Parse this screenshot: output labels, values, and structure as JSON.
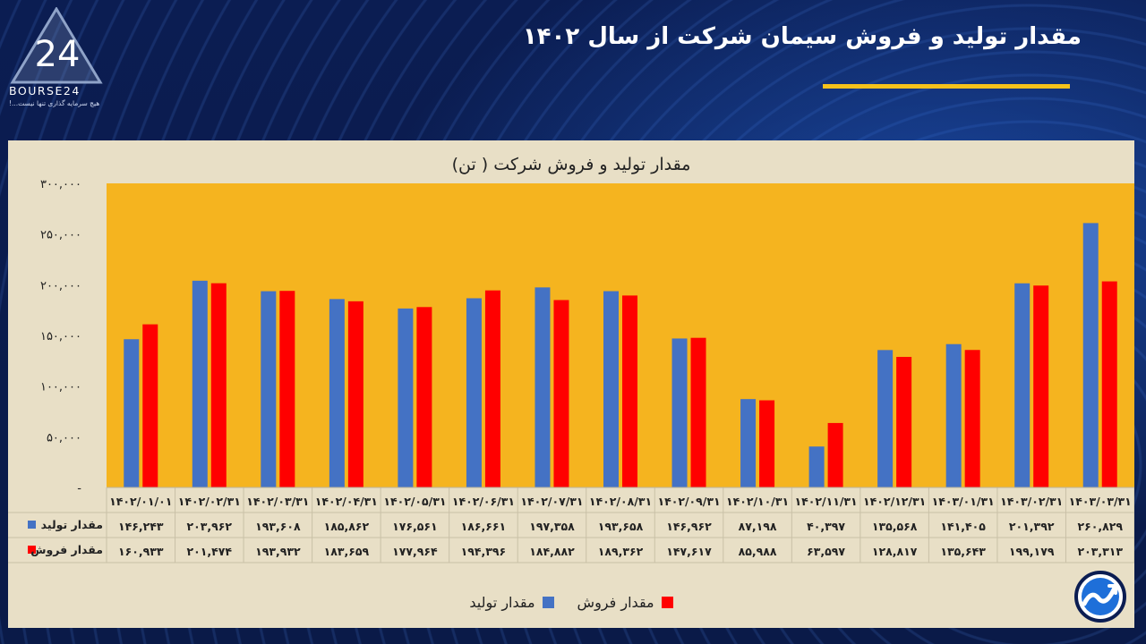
{
  "brand": {
    "name": "BOURSE24",
    "mark": "24",
    "tagline": "هیچ سرمایه گذاری تنها نیست...!"
  },
  "page_title": "مقدار تولید و فروش سیمان شرکت از سال ۱۴۰۲",
  "colors": {
    "accent": "#f5c21b",
    "plot_bg": "#f5b41f",
    "panel_bg": "#e8dfc6",
    "production": "#4472c4",
    "sales": "#ff0000"
  },
  "chart_data": {
    "type": "bar",
    "title": "مقدار تولید و فروش شرکت ( تن)",
    "ylim": [
      0,
      300000
    ],
    "y_ticks": [
      {
        "value": 300000,
        "label": "۳۰۰,۰۰۰"
      },
      {
        "value": 250000,
        "label": "۲۵۰,۰۰۰"
      },
      {
        "value": 200000,
        "label": "۲۰۰,۰۰۰"
      },
      {
        "value": 150000,
        "label": "۱۵۰,۰۰۰"
      },
      {
        "value": 100000,
        "label": "۱۰۰,۰۰۰"
      },
      {
        "value": 50000,
        "label": "۵۰,۰۰۰"
      },
      {
        "value": 0,
        "label": "-"
      }
    ],
    "categories": [
      "۱۴۰۲/۰۱/۰۱",
      "۱۴۰۲/۰۲/۳۱",
      "۱۴۰۲/۰۳/۳۱",
      "۱۴۰۲/۰۴/۳۱",
      "۱۴۰۲/۰۵/۳۱",
      "۱۴۰۲/۰۶/۳۱",
      "۱۴۰۲/۰۷/۳۱",
      "۱۴۰۲/۰۸/۳۱",
      "۱۴۰۲/۰۹/۳۱",
      "۱۴۰۲/۱۰/۳۱",
      "۱۴۰۲/۱۱/۳۱",
      "۱۴۰۲/۱۲/۳۱",
      "۱۴۰۳/۰۱/۳۱",
      "۱۴۰۳/۰۲/۳۱",
      "۱۴۰۳/۰۳/۳۱"
    ],
    "series": [
      {
        "name": "مقدار تولید",
        "color": "#4472c4",
        "values": [
          146243,
          203962,
          193608,
          185862,
          176561,
          186661,
          197358,
          193658,
          146962,
          87198,
          40397,
          135568,
          141405,
          201392,
          260829
        ],
        "labels": [
          "۱۴۶,۲۴۳",
          "۲۰۳,۹۶۲",
          "۱۹۳,۶۰۸",
          "۱۸۵,۸۶۲",
          "۱۷۶,۵۶۱",
          "۱۸۶,۶۶۱",
          "۱۹۷,۳۵۸",
          "۱۹۳,۶۵۸",
          "۱۴۶,۹۶۲",
          "۸۷,۱۹۸",
          "۴۰,۳۹۷",
          "۱۳۵,۵۶۸",
          "۱۴۱,۴۰۵",
          "۲۰۱,۳۹۲",
          "۲۶۰,۸۲۹"
        ]
      },
      {
        "name": "مقدار فروش",
        "color": "#ff0000",
        "values": [
          160933,
          201474,
          193932,
          183659,
          177964,
          194396,
          184882,
          189362,
          147617,
          85988,
          63597,
          128817,
          135643,
          199179,
          203313
        ],
        "labels": [
          "۱۶۰,۹۳۳",
          "۲۰۱,۴۷۴",
          "۱۹۳,۹۳۲",
          "۱۸۳,۶۵۹",
          "۱۷۷,۹۶۴",
          "۱۹۴,۳۹۶",
          "۱۸۴,۸۸۲",
          "۱۸۹,۳۶۲",
          "۱۴۷,۶۱۷",
          "۸۵,۹۸۸",
          "۶۳,۵۹۷",
          "۱۲۸,۸۱۷",
          "۱۳۵,۶۴۳",
          "۱۹۹,۱۷۹",
          "۲۰۳,۳۱۳"
        ]
      }
    ],
    "legend": {
      "placement": "bottom"
    },
    "grid": false
  }
}
